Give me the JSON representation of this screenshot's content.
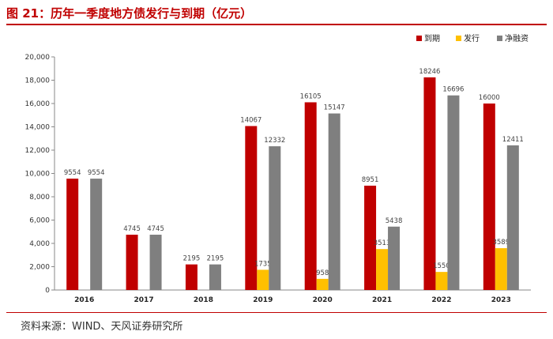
{
  "figure": {
    "title": "图 21：历年一季度地方债发行与到期（亿元）",
    "source": "资料来源：WIND、天风证券研究所"
  },
  "colors": {
    "accent": "#c00000",
    "series": [
      "#c00000",
      "#ffc000",
      "#7f7f7f"
    ]
  },
  "chart_data": {
    "type": "bar",
    "title": "历年一季度地方债发行与到期（亿元）",
    "xlabel": "",
    "ylabel": "",
    "ylim": [
      0,
      20000
    ],
    "yticks": [
      0,
      2000,
      4000,
      6000,
      8000,
      10000,
      12000,
      14000,
      16000,
      18000,
      20000
    ],
    "ytick_labels": [
      "0",
      "2,000",
      "4,000",
      "6,000",
      "8,000",
      "10,000",
      "12,000",
      "14,000",
      "16,000",
      "18,000",
      "20,000"
    ],
    "grid": false,
    "legend_position": "top-right",
    "categories": [
      "2016",
      "2017",
      "2018",
      "2019",
      "2020",
      "2021",
      "2022",
      "2023"
    ],
    "series": [
      {
        "name": "到期",
        "values": [
          9554,
          4745,
          2195,
          14067,
          16105,
          8951,
          18246,
          16000
        ],
        "labels": [
          "9554",
          "4745",
          "2195",
          "14067",
          "16105",
          "8951",
          "18246",
          "16000"
        ]
      },
      {
        "name": "发行",
        "values": [
          0,
          0,
          0,
          1735,
          958,
          3513,
          1550,
          3589
        ],
        "labels": [
          "",
          "",
          "",
          "1735",
          "958",
          "3513",
          "1550",
          "3589"
        ]
      },
      {
        "name": "净融资",
        "values": [
          9554,
          4745,
          2195,
          12332,
          15147,
          5438,
          16696,
          12411
        ],
        "labels": [
          "9554",
          "4745",
          "2195",
          "12332",
          "15147",
          "5438",
          "16696",
          "12411"
        ]
      }
    ]
  }
}
